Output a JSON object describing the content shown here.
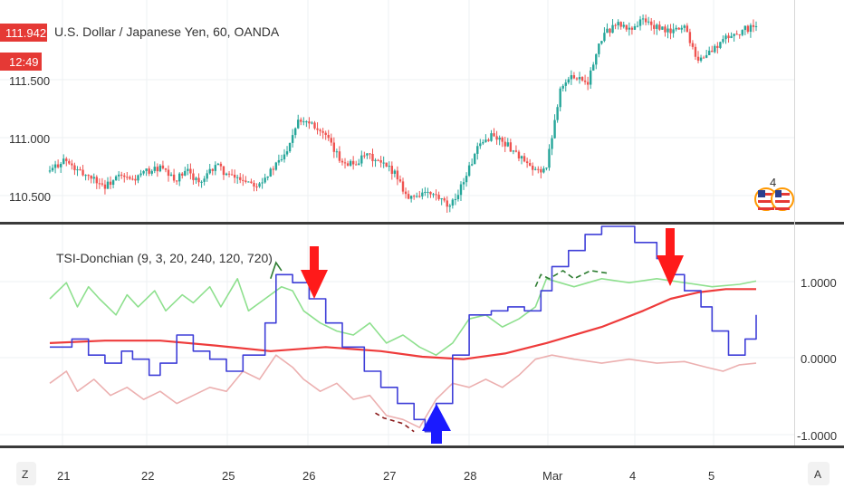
{
  "colors": {
    "bull": "#26a69a",
    "bear": "#ef5350",
    "price_badge": "#e53935",
    "tsi_line": "#3f3fd8",
    "signal_red": "#ee3b3b",
    "signal_green": "#8ee08e",
    "signal_pink": "#ecb0b0",
    "dark_green": "#2e7d32",
    "dark_red": "#8b1a1a",
    "arrow_down": "#ff1a1a",
    "arrow_up": "#1a1aff"
  },
  "price_panel": {
    "title": "U.S. Dollar / Japanese Yen, 60, OANDA",
    "last_price": "111.942",
    "countdown": "12:49",
    "y_ticks": [
      "111.500",
      "111.000",
      "110.500"
    ],
    "event_badge_count": "4",
    "event_icon": "us-flag-icon"
  },
  "indicator_panel": {
    "title": "TSI-Donchian (9, 3, 20, 240, 120, 720)",
    "y_ticks": [
      "1.0000",
      "0.0000",
      "-1.0000"
    ]
  },
  "x_axis": {
    "labels": [
      "21",
      "22",
      "25",
      "26",
      "27",
      "28",
      "Mar",
      "4",
      "5"
    ],
    "left_button": "Z",
    "right_button": "A"
  },
  "chart_data": [
    {
      "type": "candlestick",
      "title": "U.S. Dollar / Japanese Yen, 60, OANDA",
      "ylim": [
        110.35,
        112.05
      ],
      "x_labels": [
        "21",
        "22",
        "25",
        "26",
        "27",
        "28",
        "Mar",
        "4",
        "5"
      ],
      "close_path": [
        [
          0,
          110.72
        ],
        [
          5,
          110.82
        ],
        [
          10,
          110.72
        ],
        [
          15,
          110.68
        ],
        [
          20,
          110.6
        ],
        [
          25,
          110.68
        ],
        [
          30,
          110.65
        ],
        [
          35,
          110.72
        ],
        [
          40,
          110.75
        ],
        [
          45,
          110.65
        ],
        [
          50,
          110.72
        ],
        [
          55,
          110.62
        ],
        [
          60,
          110.78
        ],
        [
          65,
          110.68
        ],
        [
          70,
          110.66
        ],
        [
          75,
          110.62
        ],
        [
          80,
          110.72
        ],
        [
          85,
          110.85
        ],
        [
          90,
          111.15
        ],
        [
          95,
          111.12
        ],
        [
          100,
          111.0
        ],
        [
          105,
          110.82
        ],
        [
          110,
          110.78
        ],
        [
          115,
          110.85
        ],
        [
          120,
          110.78
        ],
        [
          125,
          110.72
        ],
        [
          130,
          110.5
        ],
        [
          135,
          110.55
        ],
        [
          140,
          110.52
        ],
        [
          145,
          110.42
        ],
        [
          150,
          110.65
        ],
        [
          155,
          110.9
        ],
        [
          160,
          111.02
        ],
        [
          165,
          110.95
        ],
        [
          170,
          110.85
        ],
        [
          175,
          110.72
        ],
        [
          180,
          110.75
        ],
        [
          185,
          111.4
        ],
        [
          190,
          111.5
        ],
        [
          195,
          111.45
        ],
        [
          200,
          111.8
        ],
        [
          205,
          111.92
        ],
        [
          210,
          111.87
        ],
        [
          215,
          111.95
        ],
        [
          220,
          111.88
        ],
        [
          225,
          111.85
        ],
        [
          230,
          111.9
        ],
        [
          235,
          111.62
        ],
        [
          240,
          111.7
        ],
        [
          245,
          111.8
        ],
        [
          250,
          111.85
        ],
        [
          255,
          111.9
        ]
      ]
    },
    {
      "type": "line",
      "title": "TSI-Donchian (9, 3, 20, 240, 120, 720)",
      "ylim": [
        -1.1,
        1.6
      ],
      "series": [
        {
          "color": "#3f3fd8",
          "step": true,
          "values": [
            [
              0,
              0.1
            ],
            [
              8,
              0.2
            ],
            [
              14,
              0.0
            ],
            [
              20,
              -0.1
            ],
            [
              26,
              0.05
            ],
            [
              30,
              -0.05
            ],
            [
              36,
              -0.25
            ],
            [
              40,
              -0.1
            ],
            [
              46,
              0.25
            ],
            [
              52,
              0.05
            ],
            [
              58,
              -0.05
            ],
            [
              64,
              -0.2
            ],
            [
              70,
              0.0
            ],
            [
              78,
              0.4
            ],
            [
              82,
              1.0
            ],
            [
              88,
              0.9
            ],
            [
              94,
              0.7
            ],
            [
              100,
              0.4
            ],
            [
              106,
              0.1
            ],
            [
              114,
              -0.2
            ],
            [
              120,
              -0.4
            ],
            [
              126,
              -0.6
            ],
            [
              132,
              -0.8
            ],
            [
              136,
              -0.95
            ],
            [
              140,
              -0.6
            ],
            [
              146,
              0.0
            ],
            [
              152,
              0.5
            ],
            [
              160,
              0.55
            ],
            [
              166,
              0.6
            ],
            [
              172,
              0.55
            ],
            [
              178,
              0.8
            ],
            [
              182,
              1.1
            ],
            [
              188,
              1.3
            ],
            [
              194,
              1.5
            ],
            [
              200,
              1.6
            ],
            [
              212,
              1.4
            ],
            [
              220,
              1.2
            ],
            [
              226,
              1.0
            ],
            [
              230,
              0.8
            ],
            [
              236,
              0.6
            ],
            [
              240,
              0.3
            ],
            [
              246,
              0.0
            ],
            [
              252,
              0.2
            ],
            [
              256,
              0.5
            ]
          ]
        },
        {
          "color": "#ee3b3b",
          "values": [
            [
              0,
              0.15
            ],
            [
              20,
              0.18
            ],
            [
              40,
              0.18
            ],
            [
              60,
              0.12
            ],
            [
              80,
              0.05
            ],
            [
              100,
              0.1
            ],
            [
              120,
              0.05
            ],
            [
              135,
              -0.02
            ],
            [
              150,
              -0.05
            ],
            [
              165,
              0.02
            ],
            [
              180,
              0.15
            ],
            [
              200,
              0.35
            ],
            [
              215,
              0.55
            ],
            [
              225,
              0.7
            ],
            [
              235,
              0.78
            ],
            [
              245,
              0.82
            ],
            [
              256,
              0.82
            ]
          ]
        },
        {
          "color": "#8ee08e",
          "values": [
            [
              0,
              0.7
            ],
            [
              6,
              0.9
            ],
            [
              10,
              0.6
            ],
            [
              14,
              0.85
            ],
            [
              18,
              0.7
            ],
            [
              24,
              0.5
            ],
            [
              28,
              0.75
            ],
            [
              32,
              0.6
            ],
            [
              38,
              0.8
            ],
            [
              42,
              0.55
            ],
            [
              48,
              0.75
            ],
            [
              52,
              0.65
            ],
            [
              58,
              0.85
            ],
            [
              62,
              0.6
            ],
            [
              68,
              0.95
            ],
            [
              72,
              0.55
            ],
            [
              78,
              0.7
            ],
            [
              84,
              0.85
            ],
            [
              88,
              0.8
            ],
            [
              92,
              0.55
            ],
            [
              98,
              0.4
            ],
            [
              104,
              0.3
            ],
            [
              110,
              0.25
            ],
            [
              116,
              0.4
            ],
            [
              122,
              0.15
            ],
            [
              128,
              0.25
            ],
            [
              134,
              0.1
            ],
            [
              140,
              0.0
            ],
            [
              146,
              0.15
            ],
            [
              152,
              0.45
            ],
            [
              158,
              0.5
            ],
            [
              164,
              0.35
            ],
            [
              170,
              0.45
            ],
            [
              176,
              0.6
            ],
            [
              180,
              0.95
            ],
            [
              190,
              0.85
            ],
            [
              200,
              0.95
            ],
            [
              210,
              0.9
            ],
            [
              220,
              0.95
            ],
            [
              230,
              0.9
            ],
            [
              240,
              0.85
            ],
            [
              250,
              0.88
            ],
            [
              256,
              0.92
            ]
          ]
        },
        {
          "color": "#ecb0b0",
          "values": [
            [
              0,
              -0.35
            ],
            [
              6,
              -0.2
            ],
            [
              10,
              -0.45
            ],
            [
              16,
              -0.3
            ],
            [
              22,
              -0.5
            ],
            [
              28,
              -0.4
            ],
            [
              34,
              -0.55
            ],
            [
              40,
              -0.45
            ],
            [
              46,
              -0.6
            ],
            [
              52,
              -0.5
            ],
            [
              58,
              -0.4
            ],
            [
              64,
              -0.45
            ],
            [
              70,
              -0.2
            ],
            [
              76,
              -0.3
            ],
            [
              82,
              0.0
            ],
            [
              88,
              -0.15
            ],
            [
              92,
              -0.3
            ],
            [
              98,
              -0.45
            ],
            [
              104,
              -0.35
            ],
            [
              110,
              -0.55
            ],
            [
              116,
              -0.5
            ],
            [
              122,
              -0.75
            ],
            [
              128,
              -0.8
            ],
            [
              134,
              -0.9
            ],
            [
              140,
              -0.55
            ],
            [
              146,
              -0.35
            ],
            [
              152,
              -0.4
            ],
            [
              158,
              -0.3
            ],
            [
              164,
              -0.4
            ],
            [
              170,
              -0.25
            ],
            [
              176,
              -0.05
            ],
            [
              182,
              0.0
            ],
            [
              190,
              -0.05
            ],
            [
              200,
              -0.1
            ],
            [
              210,
              -0.05
            ],
            [
              220,
              -0.1
            ],
            [
              230,
              -0.08
            ],
            [
              238,
              -0.15
            ],
            [
              244,
              -0.2
            ],
            [
              250,
              -0.12
            ],
            [
              256,
              -0.1
            ]
          ]
        }
      ]
    }
  ]
}
